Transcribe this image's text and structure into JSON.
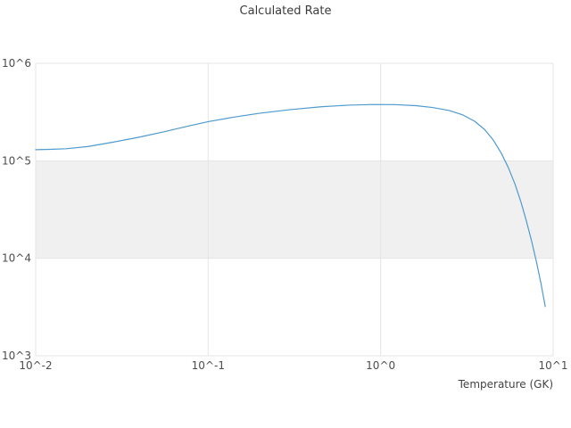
{
  "chart_data": {
    "type": "line",
    "title": "Calculated Rate",
    "xlabel": "Temperature (GK)",
    "ylabel": "",
    "x_scale": "log",
    "y_scale": "log",
    "xlim": [
      0.01,
      10
    ],
    "ylim": [
      1000,
      1000000
    ],
    "grid": true,
    "legend": "none",
    "x_ticks": [
      {
        "label": "10^-2",
        "value": 0.01
      },
      {
        "label": "10^-1",
        "value": 0.1
      },
      {
        "label": "10^0",
        "value": 1
      },
      {
        "label": "10^1",
        "value": 10
      }
    ],
    "y_ticks": [
      {
        "label": "10^3",
        "value": 1000
      },
      {
        "label": "10^4",
        "value": 10000
      },
      {
        "label": "10^5",
        "value": 100000
      },
      {
        "label": "10^6",
        "value": 1000000
      }
    ],
    "shaded_band": {
      "y0": 10000,
      "y1": 100000,
      "color": "#f0f0f0"
    },
    "colors": {
      "line": "#4f9ace",
      "grid": "#e5e5e5",
      "background": "#ffffff"
    },
    "series": [
      {
        "name": "calculated-rate",
        "color": "#4f9ace",
        "x": [
          0.01,
          0.012,
          0.015,
          0.02,
          0.028,
          0.04,
          0.055,
          0.075,
          0.1,
          0.14,
          0.2,
          0.3,
          0.45,
          0.65,
          0.9,
          1.2,
          1.6,
          2.0,
          2.5,
          3.0,
          3.5,
          4.0,
          4.5,
          5.0,
          5.5,
          6.0,
          6.5,
          7.0,
          7.5,
          8.0,
          8.5,
          9.0
        ],
        "y": [
          130000,
          131000,
          133000,
          140000,
          155000,
          175000,
          198000,
          225000,
          252000,
          280000,
          308000,
          335000,
          358000,
          372000,
          378000,
          377000,
          368000,
          352000,
          328000,
          295000,
          255000,
          210000,
          163000,
          120000,
          85000,
          58000,
          38000,
          24000,
          15000,
          9200,
          5500,
          3200
        ]
      }
    ]
  }
}
